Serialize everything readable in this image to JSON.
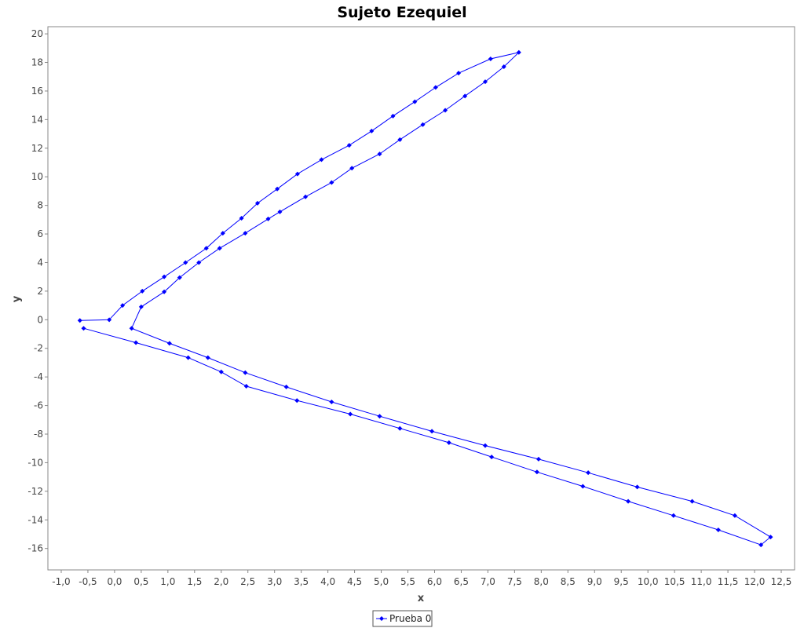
{
  "chart_data": {
    "type": "line",
    "title": "Sujeto Ezequiel",
    "xlabel": "x",
    "ylabel": "y",
    "xlim": [
      -1.25,
      12.75
    ],
    "ylim": [
      -17.5,
      20.5
    ],
    "grid": false,
    "legend_position": "bottom",
    "xticks": [
      -1.0,
      -0.5,
      0.0,
      0.5,
      1.0,
      1.5,
      2.0,
      2.5,
      3.0,
      3.5,
      4.0,
      4.5,
      5.0,
      5.5,
      6.0,
      6.5,
      7.0,
      7.5,
      8.0,
      8.5,
      9.0,
      9.5,
      10.0,
      10.5,
      11.0,
      11.5,
      12.0,
      12.5
    ],
    "xtick_labels": [
      "-1,0",
      "-0,5",
      "0,0",
      "0,5",
      "1,0",
      "1,5",
      "2,0",
      "2,5",
      "3,0",
      "3,5",
      "4,0",
      "4,5",
      "5,0",
      "5,5",
      "6,0",
      "6,5",
      "7,0",
      "7,5",
      "8,0",
      "8,5",
      "9,0",
      "9,5",
      "10,0",
      "10,5",
      "11,0",
      "11,5",
      "12,0",
      "12,5"
    ],
    "yticks": [
      20,
      18,
      16,
      14,
      12,
      10,
      8,
      6,
      4,
      2,
      0,
      -2,
      -4,
      -6,
      -8,
      -10,
      -12,
      -14,
      -16
    ],
    "ytick_labels": [
      "20",
      "18",
      "16",
      "14",
      "12",
      "10",
      "8",
      "6",
      "4",
      "2",
      "0",
      "-2",
      "-4",
      "-6",
      "-8",
      "-10",
      "-12",
      "-14",
      "-16"
    ],
    "series": [
      {
        "name": "Prueba 0",
        "color": "#0000ff",
        "marker": "diamond",
        "points": [
          [
            -0.65,
            -0.05
          ],
          [
            -0.1,
            0.0
          ],
          [
            0.15,
            1.0
          ],
          [
            0.52,
            2.0
          ],
          [
            0.93,
            3.0
          ],
          [
            1.33,
            4.0
          ],
          [
            1.72,
            5.0
          ],
          [
            2.03,
            6.05
          ],
          [
            2.38,
            7.1
          ],
          [
            2.68,
            8.15
          ],
          [
            3.05,
            9.15
          ],
          [
            3.43,
            10.2
          ],
          [
            3.88,
            11.2
          ],
          [
            4.4,
            12.2
          ],
          [
            4.82,
            13.2
          ],
          [
            5.22,
            14.25
          ],
          [
            5.63,
            15.25
          ],
          [
            6.02,
            16.25
          ],
          [
            6.45,
            17.25
          ],
          [
            7.05,
            18.25
          ],
          [
            7.58,
            18.7
          ],
          [
            7.3,
            17.7
          ],
          [
            6.95,
            16.65
          ],
          [
            6.57,
            15.65
          ],
          [
            6.2,
            14.65
          ],
          [
            5.78,
            13.65
          ],
          [
            5.35,
            12.6
          ],
          [
            4.97,
            11.6
          ],
          [
            4.45,
            10.6
          ],
          [
            4.07,
            9.6
          ],
          [
            3.58,
            8.6
          ],
          [
            3.1,
            7.55
          ],
          [
            2.88,
            7.05
          ],
          [
            2.45,
            6.05
          ],
          [
            1.97,
            5.0
          ],
          [
            1.58,
            4.0
          ],
          [
            1.22,
            2.95
          ],
          [
            0.93,
            1.95
          ],
          [
            0.5,
            0.9
          ],
          [
            0.32,
            -0.6
          ],
          [
            1.03,
            -1.65
          ],
          [
            1.75,
            -2.65
          ],
          [
            2.45,
            -3.7
          ],
          [
            3.22,
            -4.7
          ],
          [
            4.07,
            -5.75
          ],
          [
            4.97,
            -6.75
          ],
          [
            5.95,
            -7.8
          ],
          [
            6.95,
            -8.8
          ],
          [
            7.95,
            -9.75
          ],
          [
            8.88,
            -10.7
          ],
          [
            9.8,
            -11.7
          ],
          [
            10.83,
            -12.7
          ],
          [
            11.63,
            -13.7
          ],
          [
            12.3,
            -15.2
          ],
          [
            12.12,
            -15.75
          ],
          [
            11.32,
            -14.7
          ],
          [
            10.48,
            -13.7
          ],
          [
            9.63,
            -12.7
          ],
          [
            8.78,
            -11.65
          ],
          [
            7.92,
            -10.65
          ],
          [
            7.07,
            -9.6
          ],
          [
            6.27,
            -8.6
          ],
          [
            5.35,
            -7.6
          ],
          [
            4.42,
            -6.6
          ],
          [
            3.42,
            -5.65
          ],
          [
            2.47,
            -4.65
          ],
          [
            2.0,
            -3.65
          ],
          [
            1.38,
            -2.65
          ],
          [
            0.4,
            -1.6
          ],
          [
            -0.58,
            -0.6
          ]
        ]
      }
    ]
  }
}
